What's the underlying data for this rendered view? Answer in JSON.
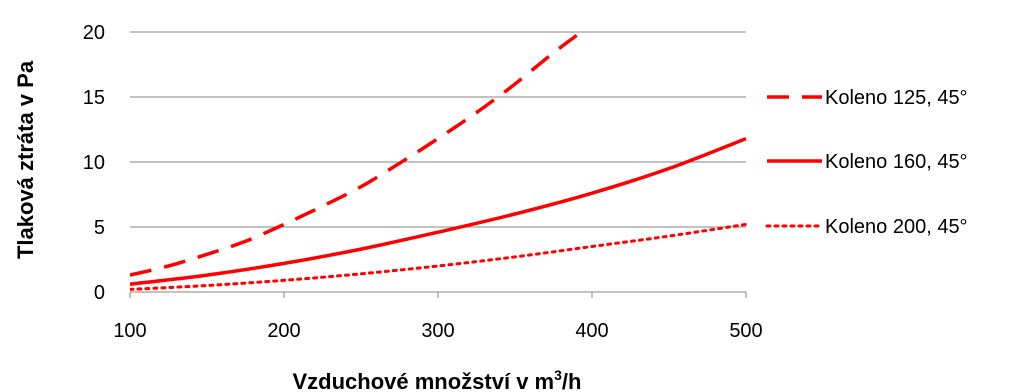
{
  "chart_data": {
    "type": "line",
    "title": "",
    "xlabel": "Vzduchové množství v m",
    "xlabel_sup": "3",
    "xlabel_suffix": "/h",
    "ylabel": "Tlaková ztráta v Pa",
    "xlim": [
      100,
      500
    ],
    "ylim": [
      0,
      20
    ],
    "xticks": [
      100,
      200,
      300,
      400,
      500
    ],
    "yticks": [
      0,
      5,
      10,
      15,
      20
    ],
    "grid": "horizontal",
    "legend_position": "right",
    "series": [
      {
        "name": "Koleno 125, 45°",
        "style": "dashed",
        "color": "#ff0000",
        "points": [
          [
            100,
            1.3
          ],
          [
            125,
            2.0
          ],
          [
            150,
            2.9
          ],
          [
            175,
            3.9
          ],
          [
            200,
            5.2
          ],
          [
            225,
            6.6
          ],
          [
            250,
            8.1
          ],
          [
            275,
            9.9
          ],
          [
            300,
            11.8
          ],
          [
            325,
            13.8
          ],
          [
            350,
            16.0
          ],
          [
            375,
            18.4
          ],
          [
            400,
            20.6
          ]
        ]
      },
      {
        "name": "Koleno 160, 45°",
        "style": "solid",
        "color": "#ff0000",
        "points": [
          [
            100,
            0.6
          ],
          [
            150,
            1.3
          ],
          [
            200,
            2.2
          ],
          [
            250,
            3.3
          ],
          [
            300,
            4.6
          ],
          [
            350,
            6.0
          ],
          [
            400,
            7.6
          ],
          [
            450,
            9.5
          ],
          [
            500,
            11.8
          ]
        ]
      },
      {
        "name": "Koleno 200, 45°",
        "style": "dotted",
        "color": "#ff0000",
        "points": [
          [
            100,
            0.2
          ],
          [
            150,
            0.5
          ],
          [
            200,
            0.9
          ],
          [
            250,
            1.4
          ],
          [
            300,
            2.0
          ],
          [
            350,
            2.7
          ],
          [
            400,
            3.5
          ],
          [
            450,
            4.3
          ],
          [
            500,
            5.2
          ]
        ]
      }
    ]
  }
}
